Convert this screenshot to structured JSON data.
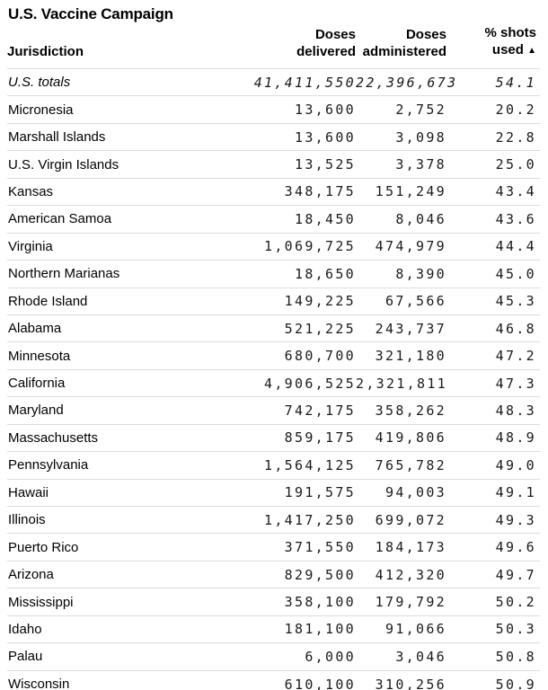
{
  "title": "U.S. Vaccine Campaign",
  "colors": {
    "background": "#ffffff",
    "heading_text": "#000000",
    "number_text": "#1a1a1a",
    "divider": "#dcdcdc"
  },
  "table": {
    "headers": {
      "jurisdiction": "Jurisdiction",
      "delivered_line1": "Doses",
      "delivered_line2": "delivered",
      "administered_line1": "Doses",
      "administered_line2": "administered",
      "used_line1": "% shots",
      "used_line2": "used",
      "sort_indicator": "▲"
    },
    "rows": [
      {
        "jurisdiction": "U.S. totals",
        "delivered": "41,411,550",
        "administered": "22,396,673",
        "pct": "54.1",
        "italic": true
      },
      {
        "jurisdiction": "Micronesia",
        "delivered": "13,600",
        "administered": "2,752",
        "pct": "20.2",
        "italic": false
      },
      {
        "jurisdiction": "Marshall Islands",
        "delivered": "13,600",
        "administered": "3,098",
        "pct": "22.8",
        "italic": false
      },
      {
        "jurisdiction": "U.S. Virgin Islands",
        "delivered": "13,525",
        "administered": "3,378",
        "pct": "25.0",
        "italic": false
      },
      {
        "jurisdiction": "Kansas",
        "delivered": "348,175",
        "administered": "151,249",
        "pct": "43.4",
        "italic": false
      },
      {
        "jurisdiction": "American Samoa",
        "delivered": "18,450",
        "administered": "8,046",
        "pct": "43.6",
        "italic": false
      },
      {
        "jurisdiction": "Virginia",
        "delivered": "1,069,725",
        "administered": "474,979",
        "pct": "44.4",
        "italic": false
      },
      {
        "jurisdiction": "Northern Marianas",
        "delivered": "18,650",
        "administered": "8,390",
        "pct": "45.0",
        "italic": false
      },
      {
        "jurisdiction": "Rhode Island",
        "delivered": "149,225",
        "administered": "67,566",
        "pct": "45.3",
        "italic": false
      },
      {
        "jurisdiction": "Alabama",
        "delivered": "521,225",
        "administered": "243,737",
        "pct": "46.8",
        "italic": false
      },
      {
        "jurisdiction": "Minnesota",
        "delivered": "680,700",
        "administered": "321,180",
        "pct": "47.2",
        "italic": false
      },
      {
        "jurisdiction": "California",
        "delivered": "4,906,525",
        "administered": "2,321,811",
        "pct": "47.3",
        "italic": false
      },
      {
        "jurisdiction": "Maryland",
        "delivered": "742,175",
        "administered": "358,262",
        "pct": "48.3",
        "italic": false
      },
      {
        "jurisdiction": "Massachusetts",
        "delivered": "859,175",
        "administered": "419,806",
        "pct": "48.9",
        "italic": false
      },
      {
        "jurisdiction": "Pennsylvania",
        "delivered": "1,564,125",
        "administered": "765,782",
        "pct": "49.0",
        "italic": false
      },
      {
        "jurisdiction": "Hawaii",
        "delivered": "191,575",
        "administered": "94,003",
        "pct": "49.1",
        "italic": false
      },
      {
        "jurisdiction": "Illinois",
        "delivered": "1,417,250",
        "administered": "699,072",
        "pct": "49.3",
        "italic": false
      },
      {
        "jurisdiction": "Puerto Rico",
        "delivered": "371,550",
        "administered": "184,173",
        "pct": "49.6",
        "italic": false
      },
      {
        "jurisdiction": "Arizona",
        "delivered": "829,500",
        "administered": "412,320",
        "pct": "49.7",
        "italic": false
      },
      {
        "jurisdiction": "Mississippi",
        "delivered": "358,100",
        "administered": "179,792",
        "pct": "50.2",
        "italic": false
      },
      {
        "jurisdiction": "Idaho",
        "delivered": "181,100",
        "administered": "91,066",
        "pct": "50.3",
        "italic": false
      },
      {
        "jurisdiction": "Palau",
        "delivered": "6,000",
        "administered": "3,046",
        "pct": "50.8",
        "italic": false
      },
      {
        "jurisdiction": "Wisconsin",
        "delivered": "610,100",
        "administered": "310,256",
        "pct": "50.9",
        "italic": false
      }
    ]
  },
  "chart_data": {
    "type": "table",
    "title": "U.S. Vaccine Campaign",
    "columns": [
      "Jurisdiction",
      "Doses delivered",
      "Doses administered",
      "% shots used"
    ],
    "sort": {
      "column": "% shots used",
      "direction": "ascending"
    },
    "rows": [
      [
        "U.S. totals",
        41411550,
        22396673,
        54.1
      ],
      [
        "Micronesia",
        13600,
        2752,
        20.2
      ],
      [
        "Marshall Islands",
        13600,
        3098,
        22.8
      ],
      [
        "U.S. Virgin Islands",
        13525,
        3378,
        25.0
      ],
      [
        "Kansas",
        348175,
        151249,
        43.4
      ],
      [
        "American Samoa",
        18450,
        8046,
        43.6
      ],
      [
        "Virginia",
        1069725,
        474979,
        44.4
      ],
      [
        "Northern Marianas",
        18650,
        8390,
        45.0
      ],
      [
        "Rhode Island",
        149225,
        67566,
        45.3
      ],
      [
        "Alabama",
        521225,
        243737,
        46.8
      ],
      [
        "Minnesota",
        680700,
        321180,
        47.2
      ],
      [
        "California",
        4906525,
        2321811,
        47.3
      ],
      [
        "Maryland",
        742175,
        358262,
        48.3
      ],
      [
        "Massachusetts",
        859175,
        419806,
        48.9
      ],
      [
        "Pennsylvania",
        1564125,
        765782,
        49.0
      ],
      [
        "Hawaii",
        191575,
        94003,
        49.1
      ],
      [
        "Illinois",
        1417250,
        699072,
        49.3
      ],
      [
        "Puerto Rico",
        371550,
        184173,
        49.6
      ],
      [
        "Arizona",
        829500,
        412320,
        49.7
      ],
      [
        "Mississippi",
        358100,
        179792,
        50.2
      ],
      [
        "Idaho",
        181100,
        91066,
        50.3
      ],
      [
        "Palau",
        6000,
        3046,
        50.8
      ],
      [
        "Wisconsin",
        610100,
        310256,
        50.9
      ]
    ]
  }
}
